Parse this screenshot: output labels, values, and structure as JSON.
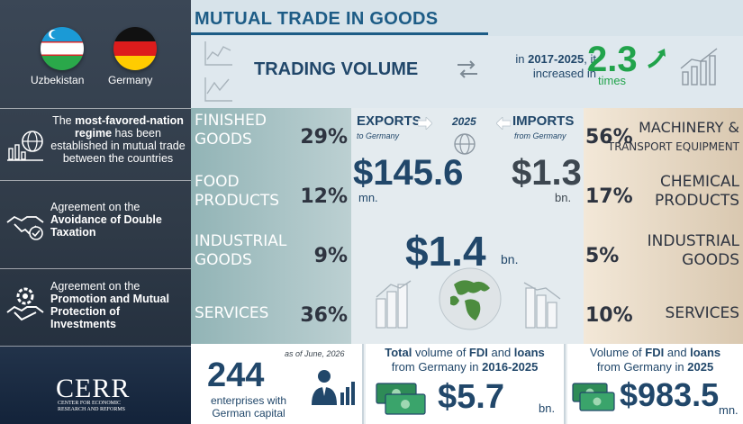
{
  "header": {
    "title": "MUTUAL TRADE IN GOODS"
  },
  "flags": [
    {
      "label": "Uzbekistan",
      "icon": "uzbekistan-flag-icon"
    },
    {
      "label": "Germany",
      "icon": "germany-flag-icon"
    }
  ],
  "agreements": [
    {
      "pre": "The ",
      "bold": "most-favored-nation regime",
      "post": " has been established in mutual trade between the countries",
      "icon": "globe-chart-icon"
    },
    {
      "pre": "Agreement on the ",
      "bold": "Avoidance of Double Taxation",
      "post": "",
      "icon": "handshake-icon"
    },
    {
      "pre": "Agreement on the ",
      "bold": "Promotion and Mutual Protection of Investments",
      "post": "",
      "icon": "gear-handshake-icon"
    }
  ],
  "logo": {
    "name": "CERR",
    "sub": "CENTER FOR ECONOMIC RESEARCH AND REFORMS"
  },
  "volume": {
    "title": "TRADING VOLUME",
    "pre": "in ",
    "years": "2017-2025",
    "post": ", it increased in",
    "multiplier": "2.3",
    "unit": "times"
  },
  "exports": {
    "label": "EXPORTS",
    "sub": "to Germany",
    "year": "2025",
    "value": "$145.6",
    "unit": "mn.",
    "categories": [
      {
        "line1": "FINISHED",
        "line2": "GOODS",
        "pct": "29%"
      },
      {
        "line1": "FOOD",
        "line2": "PRODUCTS",
        "pct": "12%"
      },
      {
        "line1": "INDUSTRIAL",
        "line2": "GOODS",
        "pct": "9%"
      },
      {
        "line1": "SERVICES",
        "line2": "",
        "pct": "36%"
      }
    ]
  },
  "imports": {
    "label": "IMPORTS",
    "sub": "from Germany",
    "value": "$1.3",
    "unit": "bn.",
    "categories": [
      {
        "line1": "MACHINERY &",
        "line2": "TRANSPORT EQUIPMENT",
        "pct": "56%"
      },
      {
        "line1": "CHEMICAL",
        "line2": "PRODUCTS",
        "pct": "17%"
      },
      {
        "line1": "INDUSTRIAL",
        "line2": "GOODS",
        "pct": "5%"
      },
      {
        "line1": "SERVICES",
        "line2": "",
        "pct": "10%"
      }
    ]
  },
  "total": {
    "value": "$1.4",
    "unit": "bn."
  },
  "enterprises": {
    "as_of": "as of June, 2026",
    "count": "244",
    "desc": "enterprises with German capital"
  },
  "fdi_total": {
    "pre": "Total",
    "mid": " volume of ",
    "bold1": "FDI",
    "and": " and ",
    "bold2": "loans",
    "line2": "from Germany in ",
    "years": "2016-2025",
    "value": "$5.7",
    "unit": "bn."
  },
  "fdi_year": {
    "pre": "Volume of ",
    "bold1": "FDI",
    "and": " and ",
    "bold2": "loans",
    "line2": "from Germany in ",
    "year": "2025",
    "value": "$983.5",
    "unit": "mn."
  }
}
